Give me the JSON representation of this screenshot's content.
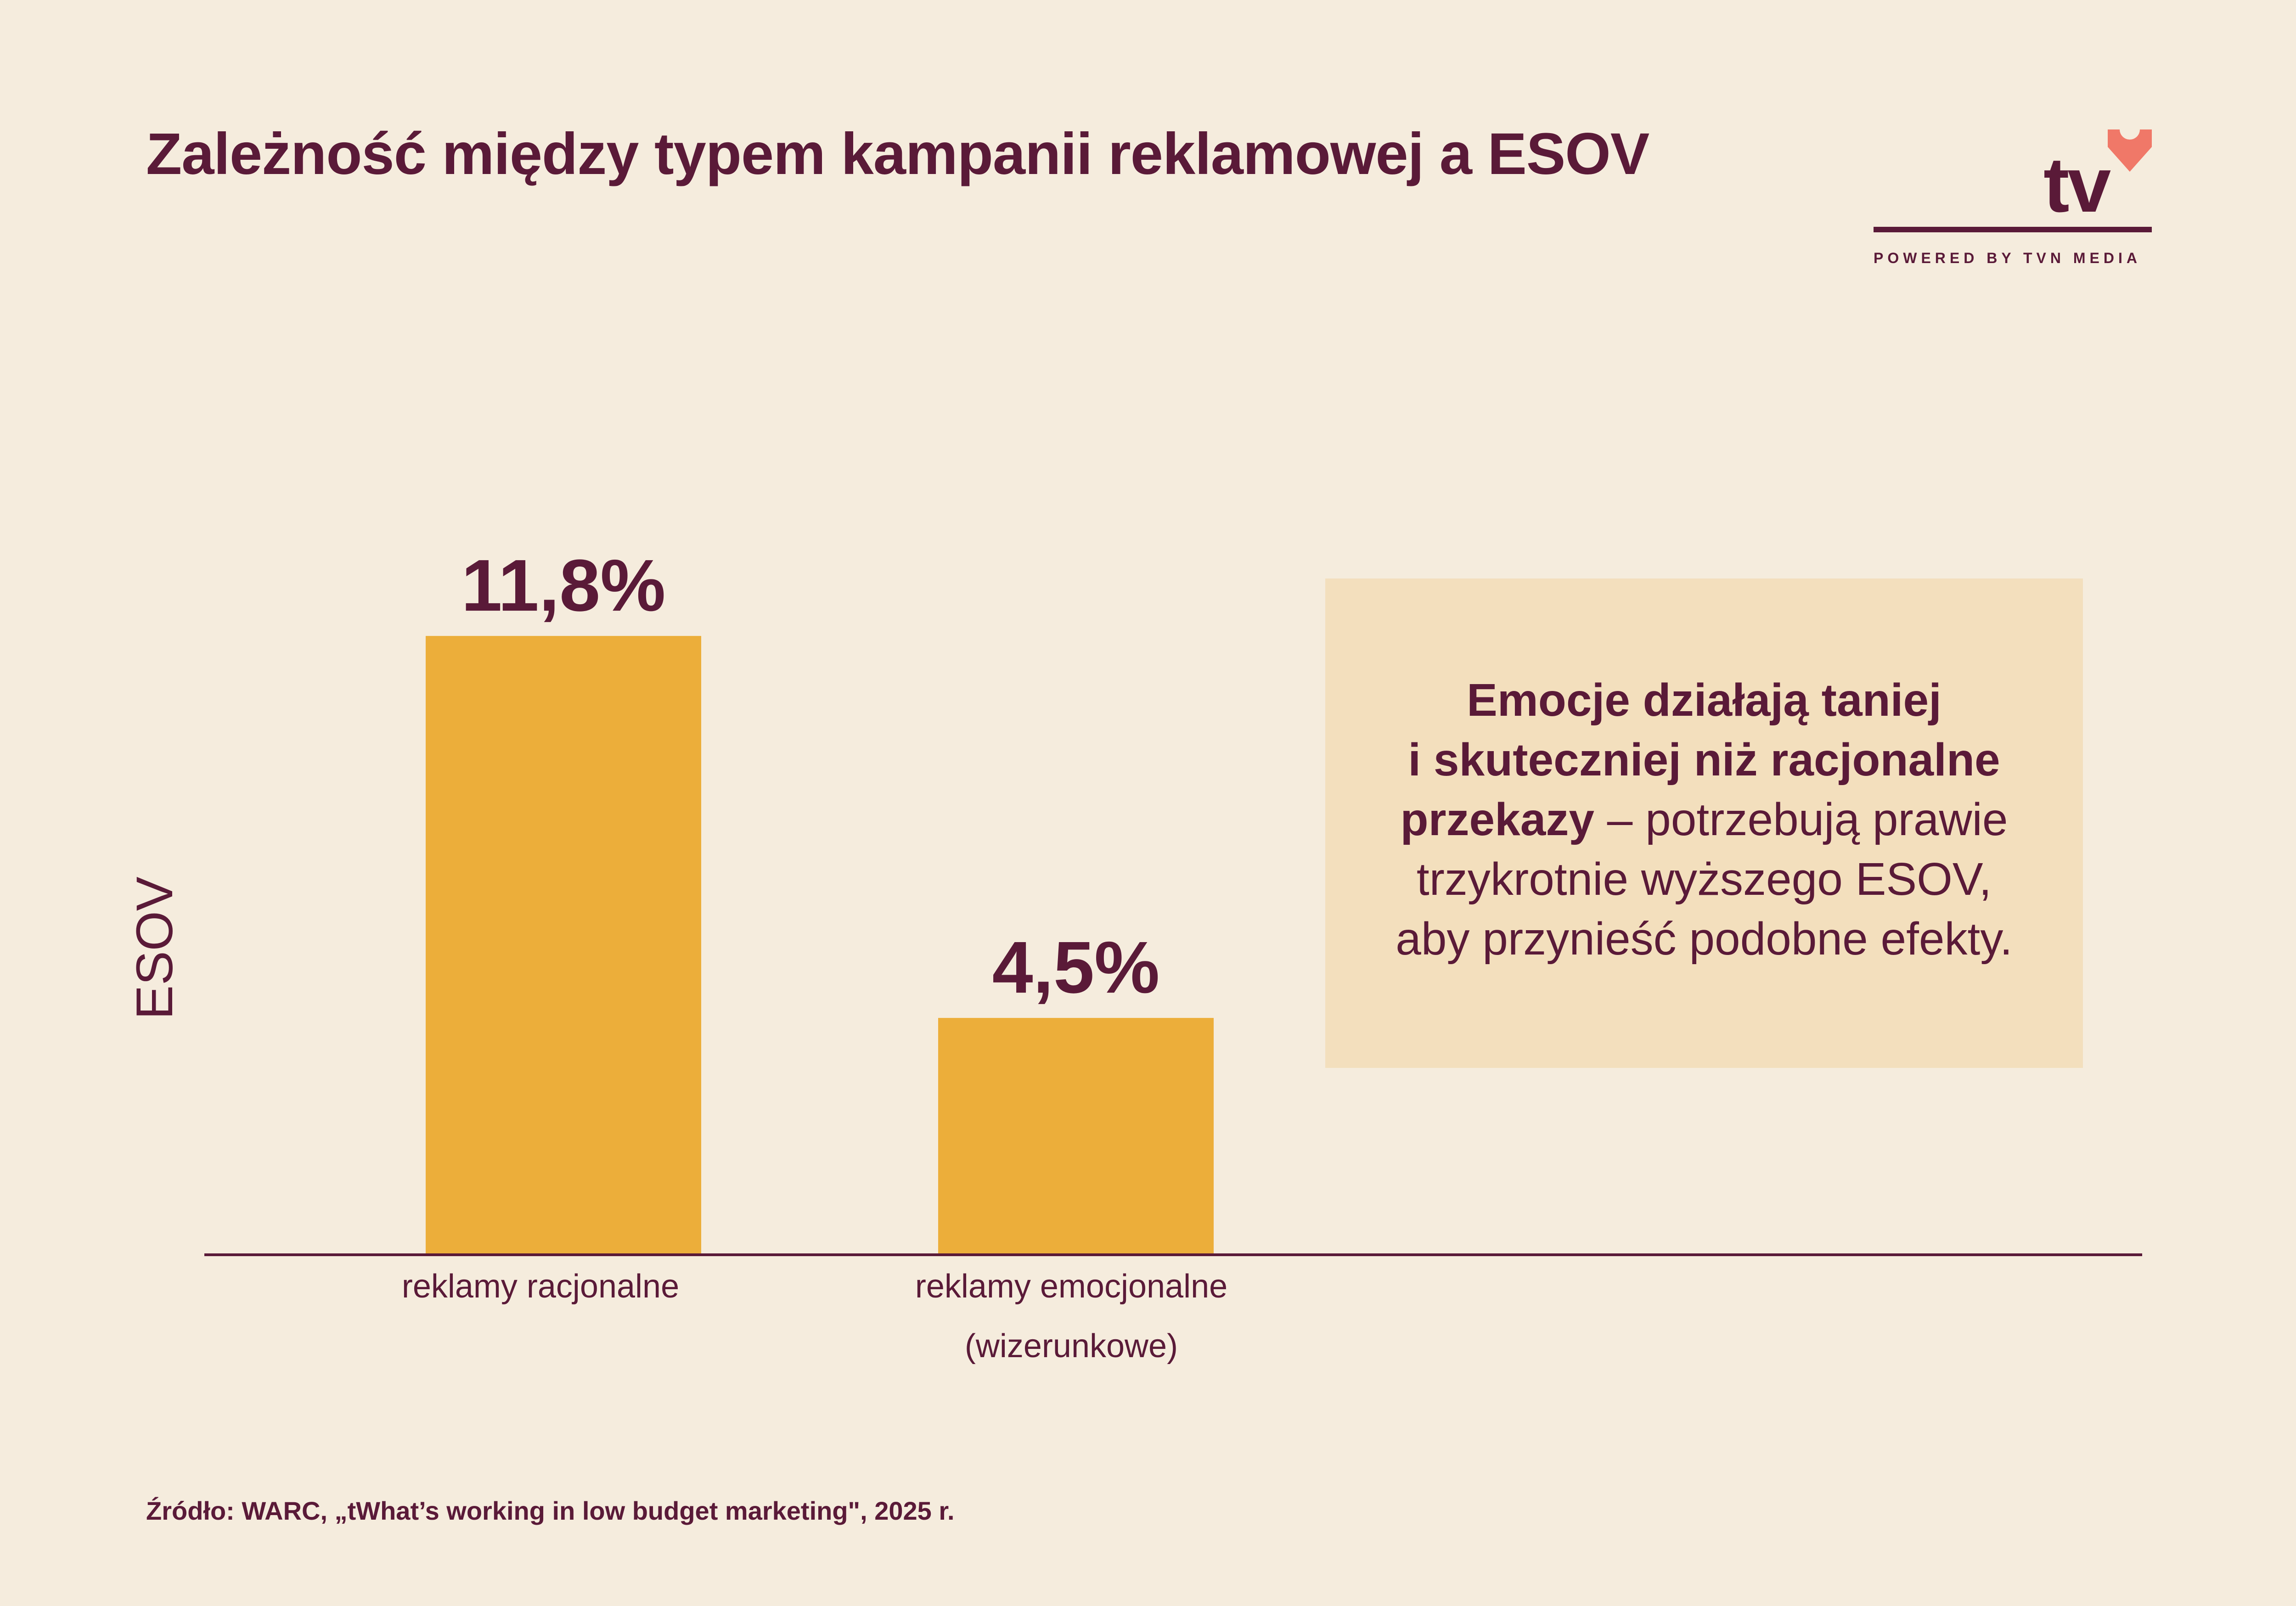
{
  "title": "Zależność między typem kampanii reklamowej a ESOV",
  "logo": {
    "text": "tv",
    "tagline": "POWERED BY TVN MEDIA",
    "heart_color": "#f07868"
  },
  "chart_data": {
    "type": "bar",
    "categories": [
      "reklamy racjonalne",
      "reklamy emocjonalne (wizerunkowe)"
    ],
    "category_lines": [
      [
        "reklamy racjonalne"
      ],
      [
        "reklamy emocjonalne",
        "(wizerunkowe)"
      ]
    ],
    "values": [
      11.8,
      4.5
    ],
    "value_labels": [
      "11,8%",
      "4,5%"
    ],
    "ylabel": "ESOV",
    "xlabel": "",
    "ylim": [
      0,
      13.6
    ],
    "grid": false,
    "bar_color": "#ecae3a",
    "axis_color": "#5a1a38"
  },
  "callout": {
    "bold_line1": "Emocje działają taniej",
    "bold_line2": "i skuteczniej niż racjonalne",
    "bold_line3": "przekazy",
    "rest_line3": " – potrzebują prawie",
    "line4": "trzykrotnie wyższego ESOV,",
    "line5": "aby przynieść podobne efekty."
  },
  "source": "Źródło: WARC, „tWhat’s working in low budget marketing\", 2025 r."
}
